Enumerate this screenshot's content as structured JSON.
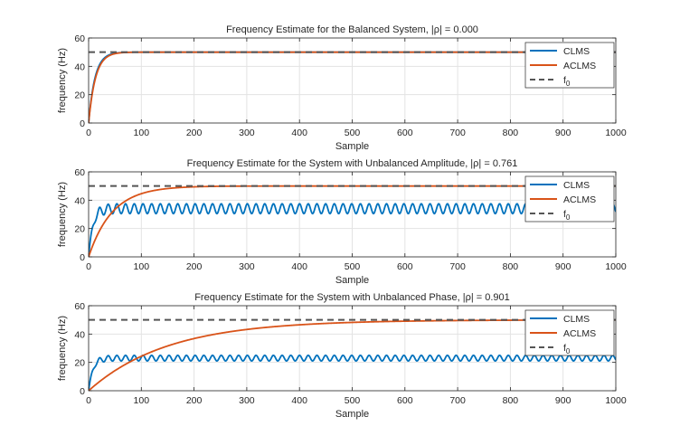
{
  "colors": {
    "clms": "#0072BD",
    "aclms": "#D95319",
    "f0": "#555555",
    "grid": "#e3e3e3",
    "axes": "#262626"
  },
  "chart_data": [
    {
      "type": "line",
      "title": "Frequency Estimate for the Balanced System, |ρ| = 0.000",
      "xlabel": "Sample",
      "ylabel": "frequency (Hz)",
      "xlim": [
        0,
        1000
      ],
      "ylim": [
        0,
        60
      ],
      "xticks": [
        "0",
        "100",
        "200",
        "300",
        "400",
        "500",
        "600",
        "700",
        "800",
        "900",
        "1000"
      ],
      "yticks": [
        "0",
        "20",
        "40",
        "60"
      ],
      "grid": true,
      "legend_position": "top-right",
      "series": [
        {
          "name": "CLMS",
          "final_value": 50,
          "rise_samples": 12,
          "oscillation_amplitude": 0,
          "oscillation_period": 0
        },
        {
          "name": "ACLMS",
          "final_value": 50,
          "rise_samples": 13,
          "oscillation_amplitude": 0,
          "oscillation_period": 0
        },
        {
          "name": "f_0",
          "value": 50
        }
      ]
    },
    {
      "type": "line",
      "title": "Frequency Estimate for the System with Unbalanced Amplitude, |ρ| = 0.761",
      "xlabel": "Sample",
      "ylabel": "frequency (Hz)",
      "xlim": [
        0,
        1000
      ],
      "ylim": [
        0,
        60
      ],
      "xticks": [
        "0",
        "100",
        "200",
        "300",
        "400",
        "500",
        "600",
        "700",
        "800",
        "900",
        "1000"
      ],
      "yticks": [
        "0",
        "20",
        "40",
        "60"
      ],
      "grid": true,
      "legend_position": "top-right",
      "series": [
        {
          "name": "CLMS",
          "final_value": 34,
          "rise_samples": 8,
          "oscillation_amplitude": 3.5,
          "oscillation_period": 16.5
        },
        {
          "name": "ACLMS",
          "final_value": 50,
          "rise_samples": 45,
          "oscillation_amplitude": 0,
          "oscillation_period": 0
        },
        {
          "name": "f_0",
          "value": 50
        }
      ]
    },
    {
      "type": "line",
      "title": "Frequency Estimate for the System with Unbalanced Phase, |ρ| = 0.901",
      "xlabel": "Sample",
      "ylabel": "frequency (Hz)",
      "xlim": [
        0,
        1000
      ],
      "ylim": [
        0,
        60
      ],
      "xticks": [
        "0",
        "100",
        "200",
        "300",
        "400",
        "500",
        "600",
        "700",
        "800",
        "900",
        "1000"
      ],
      "yticks": [
        "0",
        "20",
        "40",
        "60"
      ],
      "grid": true,
      "legend_position": "top-right",
      "series": [
        {
          "name": "CLMS",
          "final_value": 23,
          "rise_samples": 8,
          "oscillation_amplitude": 2,
          "oscillation_period": 16.5
        },
        {
          "name": "ACLMS",
          "final_value": 50,
          "rise_samples": 150,
          "oscillation_amplitude": 0,
          "oscillation_period": 0
        },
        {
          "name": "f_0",
          "value": 50
        }
      ]
    }
  ]
}
